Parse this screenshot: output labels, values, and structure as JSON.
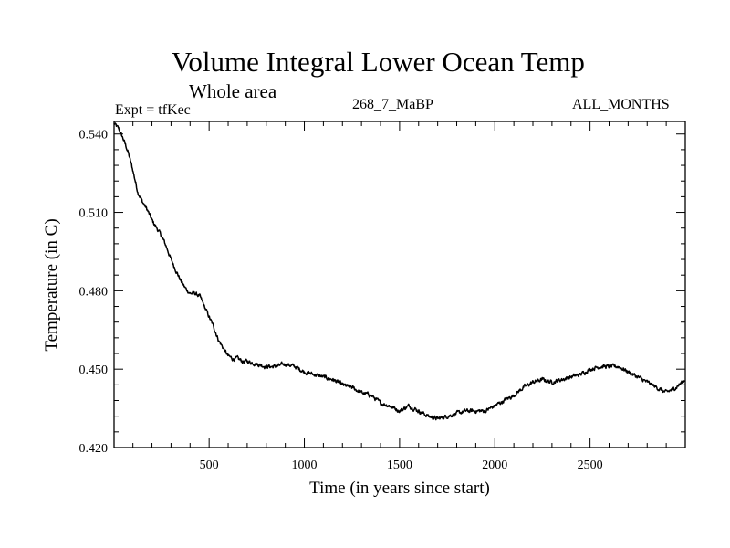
{
  "header": {
    "left": "Expt = tfKec",
    "center": "268_7_MaBP",
    "right": "ALL_MONTHS"
  },
  "chart_data": {
    "type": "line",
    "title": "Volume Integral Lower Ocean Temp",
    "subtitle": "Whole area",
    "xlabel": "Time (in years since start)",
    "ylabel": "Temperature (in C)",
    "xlim": [
      1,
      3000
    ],
    "ylim": [
      0.42,
      0.5448
    ],
    "x_ticks": [
      500,
      1000,
      1500,
      2000,
      2500
    ],
    "y_ticks": [
      0.42,
      0.45,
      0.48,
      0.51,
      0.54
    ],
    "y_tick_labels": [
      "0.420",
      "0.450",
      "0.480",
      "0.510",
      "0.540"
    ],
    "grid": false,
    "series": [
      {
        "color": "#000000",
        "x": [
          1,
          25,
          50,
          75,
          100,
          125,
          150,
          175,
          200,
          225,
          250,
          275,
          300,
          325,
          350,
          375,
          400,
          425,
          450,
          475,
          500,
          525,
          550,
          575,
          600,
          625,
          650,
          675,
          700,
          750,
          800,
          850,
          900,
          950,
          1000,
          1050,
          1100,
          1150,
          1200,
          1250,
          1300,
          1350,
          1400,
          1450,
          1500,
          1550,
          1600,
          1650,
          1700,
          1750,
          1800,
          1850,
          1900,
          1950,
          2000,
          2050,
          2100,
          2150,
          2200,
          2250,
          2300,
          2350,
          2400,
          2450,
          2500,
          2550,
          2600,
          2650,
          2700,
          2750,
          2800,
          2850,
          2900,
          2950,
          3000
        ],
        "values": [
          0.544,
          0.542,
          0.538,
          0.533,
          0.526,
          0.518,
          0.514,
          0.511,
          0.507,
          0.504,
          0.501,
          0.497,
          0.492,
          0.488,
          0.484,
          0.481,
          0.479,
          0.479,
          0.478,
          0.474,
          0.47,
          0.466,
          0.461,
          0.458,
          0.455,
          0.454,
          0.454,
          0.453,
          0.453,
          0.452,
          0.451,
          0.451,
          0.452,
          0.451,
          0.449,
          0.448,
          0.447,
          0.446,
          0.444,
          0.443,
          0.441,
          0.44,
          0.437,
          0.436,
          0.434,
          0.436,
          0.434,
          0.432,
          0.431,
          0.432,
          0.433,
          0.434,
          0.434,
          0.434,
          0.436,
          0.438,
          0.44,
          0.443,
          0.445,
          0.446,
          0.445,
          0.446,
          0.447,
          0.448,
          0.45,
          0.451,
          0.451,
          0.451,
          0.449,
          0.447,
          0.445,
          0.443,
          0.441,
          0.443,
          0.446
        ]
      }
    ]
  }
}
